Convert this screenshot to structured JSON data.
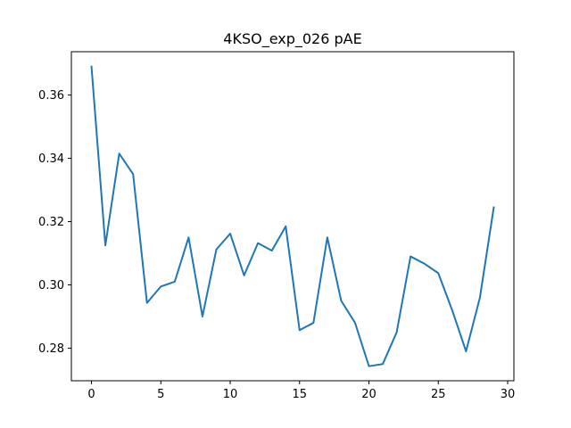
{
  "chart_data": {
    "type": "line",
    "title": "4KSO_exp_026 pAE",
    "xlabel": "",
    "ylabel": "",
    "xlim": [
      -1.45,
      30.45
    ],
    "ylim": [
      0.2697,
      0.3737
    ],
    "xticks": [
      0,
      5,
      10,
      15,
      20,
      25,
      30
    ],
    "xtick_labels": [
      "0",
      "5",
      "10",
      "15",
      "20",
      "25",
      "30"
    ],
    "yticks": [
      0.28,
      0.3,
      0.32,
      0.34,
      0.36
    ],
    "ytick_labels": [
      "0.28",
      "0.30",
      "0.32",
      "0.34",
      "0.36"
    ],
    "grid": false,
    "legend": "none",
    "series": [
      {
        "color": "#1f77b4",
        "x": [
          0,
          1,
          2,
          3,
          4,
          5,
          6,
          7,
          8,
          9,
          10,
          11,
          12,
          13,
          14,
          15,
          16,
          17,
          18,
          19,
          20,
          21,
          22,
          23,
          24,
          25,
          26,
          27,
          28,
          29
        ],
        "values": [
          0.369,
          0.3125,
          0.3415,
          0.335,
          0.2943,
          0.2995,
          0.301,
          0.315,
          0.29,
          0.3112,
          0.3162,
          0.303,
          0.3132,
          0.3108,
          0.3185,
          0.2857,
          0.288,
          0.315,
          0.295,
          0.288,
          0.2743,
          0.275,
          0.285,
          0.309,
          0.3067,
          0.3037,
          0.292,
          0.279,
          0.296,
          0.3245
        ]
      }
    ]
  }
}
